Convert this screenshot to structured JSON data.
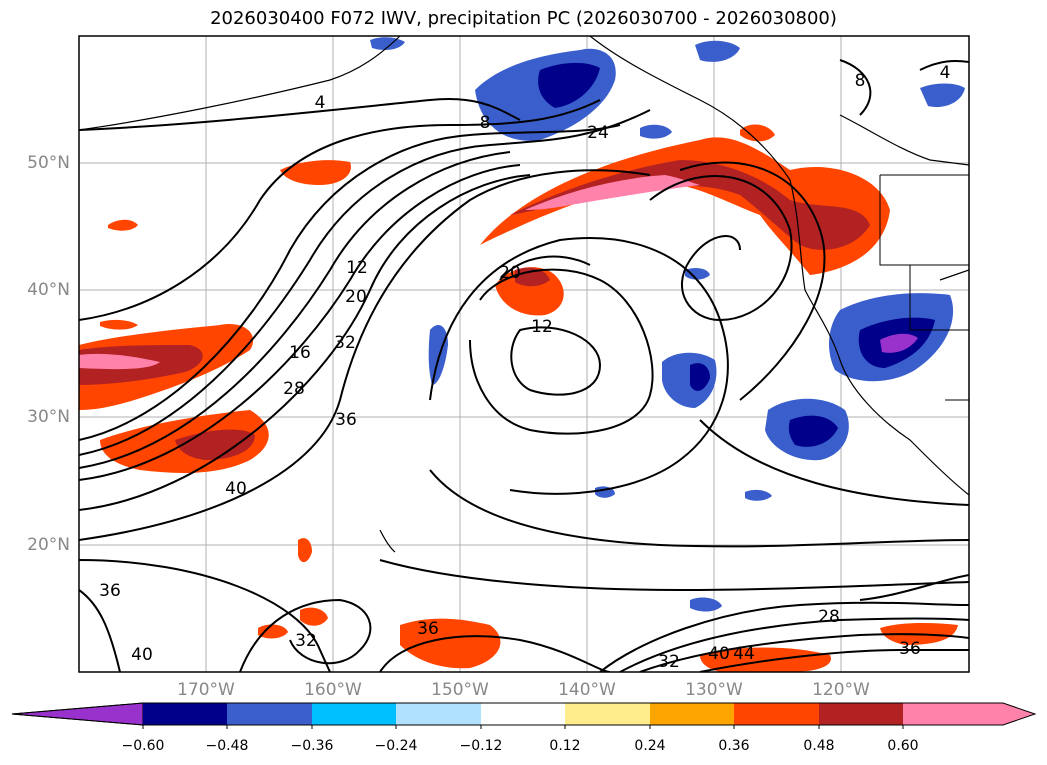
{
  "title": "2026030400 F072 IWV, precipitation PC (2026030700 - 2026030800)",
  "latitude_labels": [
    "50°N",
    "40°N",
    "30°N",
    "20°N"
  ],
  "longitude_labels": [
    "170°W",
    "160°W",
    "150°W",
    "140°W",
    "130°W",
    "120°W"
  ],
  "contour_labels": [
    "4",
    "8",
    "4",
    "8",
    "24",
    "12",
    "20",
    "16",
    "28",
    "32",
    "36",
    "40",
    "20",
    "12",
    "36",
    "40",
    "32",
    "36",
    "28",
    "32",
    "40",
    "44",
    "36"
  ],
  "colorbar": {
    "ticks": [
      "−0.60",
      "−0.48",
      "−0.36",
      "−0.24",
      "−0.12",
      "0.12",
      "0.24",
      "0.36",
      "0.48",
      "0.60"
    ],
    "colors": [
      "#9932cc",
      "#00008b",
      "#3a5fcd",
      "#00bfff",
      "#b0e2ff",
      "#ffffff",
      "#ffec8b",
      "#ffa500",
      "#ff4500",
      "#b22222",
      "#ff82ab",
      "#ff82ab"
    ]
  }
}
